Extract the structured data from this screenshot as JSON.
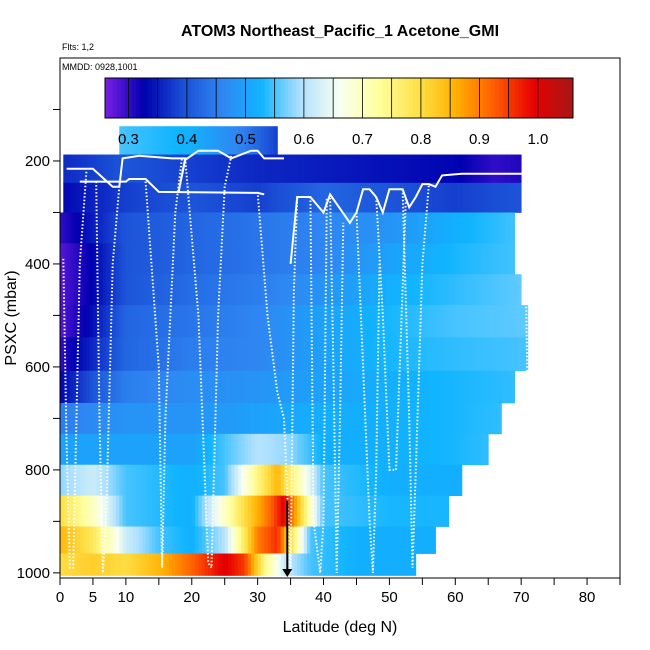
{
  "header": {
    "flights": "Flts: 1,2",
    "mmdd": "MMDD: 0928,1001"
  },
  "colors": {
    "scale": [
      "#7a1fe6",
      "#0000b0",
      "#1a4fd6",
      "#2f86f2",
      "#10b4ff",
      "#aee0ff",
      "#f8fff0",
      "#ffffa0",
      "#ffe24a",
      "#ffb000",
      "#ff5a00",
      "#e60000",
      "#a51818"
    ],
    "flight_track": "#ffffff",
    "marker": "#000000"
  },
  "chart_data": {
    "type": "heatmap",
    "title": "ATOM3 Northeast_Pacific_1 Acetone_GMI",
    "xlabel": "Latitude (deg N)",
    "ylabel": "PSXC (mbar)",
    "xlim": [
      0,
      85
    ],
    "ylim": [
      1010,
      0
    ],
    "xticks": [
      0,
      5,
      10,
      20,
      30,
      40,
      50,
      60,
      70,
      80
    ],
    "yticks": [
      200,
      400,
      600,
      800,
      1000
    ],
    "colorbar": {
      "min": 0.26,
      "max": 1.06,
      "ticks": [
        0.3,
        0.4,
        0.5,
        0.6,
        0.7,
        0.8,
        0.9,
        1.0
      ],
      "tick_labels": [
        "0.3",
        "0.4",
        "0.5",
        "0.6",
        "0.7",
        "0.8",
        "0.9",
        "1.0"
      ]
    },
    "field": {
      "pressure_levels": [
        160,
        215,
        270,
        330,
        390,
        450,
        510,
        575,
        640,
        700,
        760,
        820,
        880,
        940,
        985
      ],
      "lat_max_per_level": [
        33,
        70,
        70,
        69,
        69,
        70,
        71,
        71,
        69,
        67,
        65,
        61,
        59,
        57,
        54
      ],
      "lat_min_per_level": [
        9,
        0.5,
        0.5,
        0,
        0,
        0,
        0,
        0,
        0,
        0,
        0,
        0,
        0,
        0,
        0
      ],
      "note_values": "acetone mixing ratio per level vs latitude",
      "profiles": [
        [
          [
            9,
            0.55
          ],
          [
            20,
            0.52
          ],
          [
            28,
            0.45
          ],
          [
            33,
            0.38
          ]
        ],
        [
          [
            0,
            0.36
          ],
          [
            10,
            0.4
          ],
          [
            20,
            0.38
          ],
          [
            30,
            0.36
          ],
          [
            50,
            0.34
          ],
          [
            60,
            0.33
          ],
          [
            66,
            0.3
          ],
          [
            70,
            0.31
          ]
        ],
        [
          [
            0,
            0.33
          ],
          [
            10,
            0.38
          ],
          [
            20,
            0.4
          ],
          [
            30,
            0.38
          ],
          [
            40,
            0.42
          ],
          [
            50,
            0.4
          ],
          [
            60,
            0.38
          ],
          [
            70,
            0.4
          ]
        ],
        [
          [
            0,
            0.3
          ],
          [
            5,
            0.35
          ],
          [
            10,
            0.4
          ],
          [
            20,
            0.42
          ],
          [
            30,
            0.44
          ],
          [
            40,
            0.46
          ],
          [
            50,
            0.48
          ],
          [
            60,
            0.52
          ],
          [
            70,
            0.55
          ]
        ],
        [
          [
            0,
            0.28
          ],
          [
            5,
            0.33
          ],
          [
            10,
            0.4
          ],
          [
            20,
            0.42
          ],
          [
            30,
            0.44
          ],
          [
            40,
            0.46
          ],
          [
            50,
            0.5
          ],
          [
            60,
            0.53
          ],
          [
            70,
            0.55
          ]
        ],
        [
          [
            0,
            0.28
          ],
          [
            5,
            0.33
          ],
          [
            10,
            0.4
          ],
          [
            20,
            0.43
          ],
          [
            30,
            0.45
          ],
          [
            40,
            0.48
          ],
          [
            50,
            0.52
          ],
          [
            60,
            0.54
          ],
          [
            70,
            0.56
          ]
        ],
        [
          [
            0,
            0.28
          ],
          [
            5,
            0.34
          ],
          [
            10,
            0.42
          ],
          [
            20,
            0.44
          ],
          [
            30,
            0.46
          ],
          [
            40,
            0.5
          ],
          [
            50,
            0.53
          ],
          [
            60,
            0.55
          ],
          [
            71,
            0.56
          ]
        ],
        [
          [
            0,
            0.3
          ],
          [
            5,
            0.36
          ],
          [
            10,
            0.42
          ],
          [
            20,
            0.45
          ],
          [
            30,
            0.46
          ],
          [
            40,
            0.5
          ],
          [
            50,
            0.53
          ],
          [
            60,
            0.54
          ],
          [
            71,
            0.55
          ]
        ],
        [
          [
            0,
            0.33
          ],
          [
            5,
            0.4
          ],
          [
            10,
            0.45
          ],
          [
            20,
            0.47
          ],
          [
            30,
            0.48
          ],
          [
            40,
            0.5
          ],
          [
            50,
            0.52
          ],
          [
            60,
            0.53
          ],
          [
            69,
            0.54
          ]
        ],
        [
          [
            0,
            0.45
          ],
          [
            10,
            0.48
          ],
          [
            20,
            0.48
          ],
          [
            30,
            0.5
          ],
          [
            40,
            0.52
          ],
          [
            50,
            0.52
          ],
          [
            60,
            0.53
          ],
          [
            67,
            0.54
          ]
        ],
        [
          [
            0,
            0.5
          ],
          [
            10,
            0.5
          ],
          [
            20,
            0.5
          ],
          [
            30,
            0.6
          ],
          [
            35,
            0.58
          ],
          [
            40,
            0.52
          ],
          [
            50,
            0.52
          ],
          [
            60,
            0.53
          ],
          [
            65,
            0.54
          ]
        ],
        [
          [
            0,
            0.58
          ],
          [
            5,
            0.62
          ],
          [
            10,
            0.55
          ],
          [
            20,
            0.52
          ],
          [
            25,
            0.55
          ],
          [
            30,
            0.75
          ],
          [
            33,
            0.85
          ],
          [
            36,
            0.72
          ],
          [
            40,
            0.55
          ],
          [
            50,
            0.52
          ],
          [
            61,
            0.52
          ]
        ],
        [
          [
            0,
            0.8
          ],
          [
            5,
            0.7
          ],
          [
            10,
            0.55
          ],
          [
            20,
            0.52
          ],
          [
            28,
            0.8
          ],
          [
            32,
            0.92
          ],
          [
            34,
            1.0
          ],
          [
            36,
            0.85
          ],
          [
            40,
            0.55
          ],
          [
            50,
            0.53
          ],
          [
            59,
            0.53
          ]
        ],
        [
          [
            0,
            0.85
          ],
          [
            5,
            0.78
          ],
          [
            10,
            0.62
          ],
          [
            15,
            0.55
          ],
          [
            20,
            0.52
          ],
          [
            25,
            0.6
          ],
          [
            30,
            0.9
          ],
          [
            33,
            0.96
          ],
          [
            35,
            0.8
          ],
          [
            38,
            0.55
          ],
          [
            45,
            0.52
          ],
          [
            57,
            0.52
          ]
        ],
        [
          [
            0,
            0.8
          ],
          [
            5,
            0.82
          ],
          [
            10,
            0.8
          ],
          [
            15,
            0.85
          ],
          [
            20,
            0.92
          ],
          [
            25,
            1.0
          ],
          [
            28,
            0.95
          ],
          [
            31,
            0.75
          ],
          [
            34,
            0.62
          ],
          [
            38,
            0.55
          ],
          [
            45,
            0.52
          ],
          [
            54,
            0.52
          ]
        ]
      ]
    },
    "flight_track": {
      "solid": [
        [
          [
            1,
            215
          ],
          [
            5,
            215
          ],
          [
            8,
            250
          ],
          [
            9,
            250
          ],
          [
            9.5,
            195
          ],
          [
            12,
            190
          ],
          [
            17,
            195
          ],
          [
            19,
            195
          ],
          [
            18,
            260
          ],
          [
            19,
            198
          ],
          [
            21,
            180
          ],
          [
            24,
            180
          ],
          [
            26,
            195
          ],
          [
            27,
            190
          ],
          [
            29,
            180
          ],
          [
            30,
            180
          ],
          [
            31,
            195
          ],
          [
            34,
            195
          ]
        ],
        [
          [
            3,
            240
          ],
          [
            10,
            240
          ],
          [
            10.5,
            235
          ],
          [
            13,
            235
          ],
          [
            15,
            260
          ],
          [
            30,
            262
          ],
          [
            31,
            265
          ]
        ],
        [
          [
            35,
            400
          ],
          [
            36,
            270
          ],
          [
            38,
            270
          ],
          [
            40,
            300
          ],
          [
            41,
            265
          ],
          [
            44,
            320
          ],
          [
            45,
            300
          ],
          [
            46,
            255
          ],
          [
            47,
            255
          ],
          [
            48,
            270
          ],
          [
            49,
            300
          ],
          [
            50,
            255
          ],
          [
            52,
            255
          ],
          [
            53,
            290
          ],
          [
            54,
            270
          ],
          [
            55,
            245
          ],
          [
            56,
            245
          ],
          [
            57,
            250
          ],
          [
            58,
            228
          ],
          [
            61,
            225
          ],
          [
            65,
            225
          ],
          [
            68,
            225
          ],
          [
            70.5,
            225
          ]
        ]
      ],
      "dotted": [
        [
          [
            0.5,
            390
          ],
          [
            1,
            750
          ],
          [
            1.5,
            990
          ],
          [
            2,
            990
          ],
          [
            3,
            400
          ],
          [
            4,
            220
          ]
        ],
        [
          [
            5.5,
            240
          ],
          [
            6,
            700
          ],
          [
            6.5,
            1000
          ],
          [
            7,
            900
          ],
          [
            8,
            400
          ],
          [
            9,
            250
          ]
        ],
        [
          [
            13,
            240
          ],
          [
            15,
            600
          ],
          [
            15.5,
            990
          ],
          [
            16,
            700
          ],
          [
            17.5,
            300
          ],
          [
            18.5,
            195
          ]
        ],
        [
          [
            19,
            195
          ],
          [
            21,
            500
          ],
          [
            22.5,
            980
          ],
          [
            23,
            990
          ],
          [
            24,
            500
          ],
          [
            25,
            250
          ],
          [
            26,
            190
          ]
        ],
        [
          [
            30,
            260
          ],
          [
            31.5,
            500
          ],
          [
            33,
            650
          ],
          [
            34,
            700
          ],
          [
            35,
            1000
          ],
          [
            35.5,
            450
          ],
          [
            36,
            270
          ]
        ],
        [
          [
            38,
            270
          ],
          [
            38.5,
            900
          ],
          [
            39.5,
            1000
          ],
          [
            40,
            900
          ],
          [
            40.5,
            270
          ]
        ],
        [
          [
            41,
            265
          ],
          [
            41.5,
            600
          ],
          [
            42,
            1000
          ],
          [
            42.5,
            700
          ],
          [
            43,
            320
          ]
        ],
        [
          [
            45,
            300
          ],
          [
            46,
            600
          ],
          [
            47,
            900
          ],
          [
            47.5,
            1000
          ],
          [
            48,
            800
          ],
          [
            48.5,
            400
          ]
        ],
        [
          [
            48,
            270
          ],
          [
            49,
            500
          ],
          [
            50,
            800
          ],
          [
            51,
            800
          ],
          [
            52.5,
            270
          ]
        ],
        [
          [
            52,
            255
          ],
          [
            53,
            700
          ],
          [
            53.5,
            990
          ],
          [
            54,
            800
          ],
          [
            55,
            400
          ],
          [
            56,
            245
          ]
        ],
        [
          [
            70.5,
            225
          ],
          [
            70.8,
            500
          ],
          [
            71,
            680
          ]
        ]
      ],
      "marker": {
        "lat": 34.5,
        "from": 860,
        "to": 1010
      }
    }
  }
}
